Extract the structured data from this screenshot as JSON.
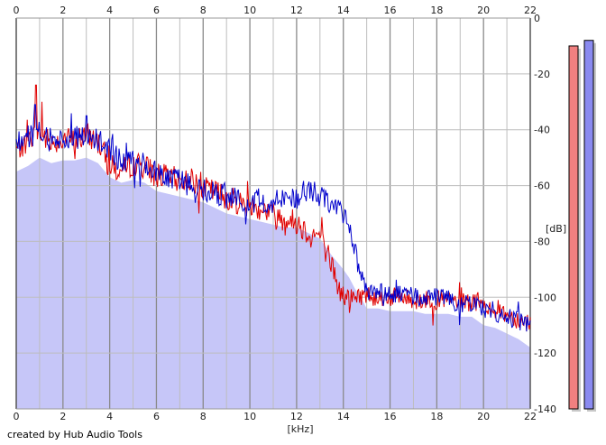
{
  "chart_data": {
    "type": "line",
    "credit": "created by Hub Audio Tools",
    "xlabel": "[kHz]",
    "ylabel": "[dB]",
    "xlim": [
      0,
      22
    ],
    "ylim": [
      -140,
      0
    ],
    "x_ticks": [
      0,
      2,
      4,
      6,
      8,
      10,
      12,
      14,
      16,
      18,
      20,
      22
    ],
    "y_ticks": [
      0,
      -20,
      -40,
      -60,
      -80,
      -100,
      -120,
      -140
    ],
    "grid": true,
    "colors": {
      "fill": "#c6c6f8",
      "fill_edge": "#8080e0",
      "red": "#e00000",
      "blue": "#0000cc",
      "grid_minor": "#bdbdbd",
      "grid_major": "#8a8a8a",
      "meter_red": "#f08080",
      "meter_blue": "#8a8af0"
    },
    "series": [
      {
        "color": "red",
        "x": [
          0.0,
          0.5,
          1.0,
          1.5,
          2.0,
          2.5,
          3.0,
          3.5,
          4.0,
          4.5,
          5.0,
          5.5,
          6.0,
          6.5,
          7.0,
          7.5,
          8.0,
          8.5,
          9.0,
          9.5,
          10.0,
          10.5,
          11.0,
          11.5,
          12.0,
          12.5,
          13.0,
          13.25,
          13.5,
          13.75,
          14.0,
          14.5,
          15.0,
          15.5,
          16.0,
          16.5,
          17.0,
          17.5,
          18.0,
          18.5,
          19.0,
          19.5,
          20.0,
          20.5,
          21.0,
          21.5,
          22.0
        ],
        "y": [
          -47,
          -44,
          -41,
          -45,
          -43,
          -44,
          -42,
          -44,
          -53,
          -55,
          -52,
          -53,
          -56,
          -57,
          -58,
          -58,
          -61,
          -62,
          -64,
          -66,
          -67,
          -68,
          -70,
          -72,
          -73,
          -77,
          -78,
          -83,
          -88,
          -96,
          -100,
          -100,
          -99,
          -100,
          -100,
          -100,
          -101,
          -101,
          -101,
          -101,
          -102,
          -102,
          -103,
          -104,
          -106,
          -108,
          -109
        ],
        "peaks": [
          [
            0.85,
            -24
          ],
          [
            1.1,
            -30
          ]
        ]
      },
      {
        "color": "blue",
        "x": [
          0.0,
          0.5,
          1.0,
          1.5,
          2.0,
          2.5,
          3.0,
          3.5,
          4.0,
          4.5,
          5.0,
          5.5,
          6.0,
          6.5,
          7.0,
          7.5,
          8.0,
          8.5,
          9.0,
          9.5,
          10.0,
          10.5,
          11.0,
          11.5,
          12.0,
          12.5,
          13.0,
          13.5,
          14.0,
          14.25,
          14.5,
          14.75,
          15.0,
          15.5,
          16.0,
          16.5,
          17.0,
          17.5,
          18.0,
          18.5,
          19.0,
          19.5,
          20.0,
          20.5,
          21.0,
          21.5,
          22.0
        ],
        "y": [
          -45,
          -42,
          -41,
          -44,
          -43,
          -43,
          -42,
          -44,
          -48,
          -52,
          -51,
          -52,
          -55,
          -57,
          -58,
          -60,
          -61,
          -63,
          -64,
          -65,
          -66,
          -66,
          -65,
          -65,
          -64,
          -62,
          -63,
          -66,
          -70,
          -75,
          -83,
          -93,
          -98,
          -98,
          -99,
          -99,
          -100,
          -100,
          -100,
          -101,
          -102,
          -102,
          -104,
          -105,
          -107,
          -108,
          -111
        ],
        "peaks": [
          [
            0.8,
            -31
          ],
          [
            3.0,
            -35
          ]
        ]
      }
    ],
    "envelope": {
      "x": [
        0.0,
        0.5,
        1.0,
        1.5,
        2.0,
        2.5,
        3.0,
        3.5,
        4.0,
        4.5,
        5.0,
        5.5,
        6.0,
        6.5,
        7.0,
        7.5,
        8.0,
        8.5,
        9.0,
        9.5,
        10.0,
        10.5,
        11.0,
        11.5,
        12.0,
        12.5,
        13.0,
        13.5,
        14.0,
        14.25,
        14.5,
        14.75,
        15.0,
        15.5,
        16.0,
        16.5,
        17.0,
        17.5,
        18.0,
        18.5,
        19.0,
        19.5,
        20.0,
        20.5,
        21.0,
        21.5,
        22.0
      ],
      "y": [
        -55,
        -53,
        -50,
        -52,
        -51,
        -51,
        -50,
        -52,
        -57,
        -59,
        -58,
        -59,
        -62,
        -63,
        -64,
        -65,
        -66,
        -68,
        -70,
        -71,
        -72,
        -73,
        -74,
        -75,
        -75,
        -77,
        -79,
        -85,
        -90,
        -93,
        -97,
        -100,
        -104,
        -104,
        -105,
        -105,
        -105,
        -106,
        -106,
        -106,
        -107,
        -107,
        -110,
        -111,
        -113,
        -115,
        -118
      ]
    },
    "meters": [
      {
        "color": "red",
        "level_db": -10
      },
      {
        "color": "blue",
        "level_db": -8
      }
    ]
  }
}
